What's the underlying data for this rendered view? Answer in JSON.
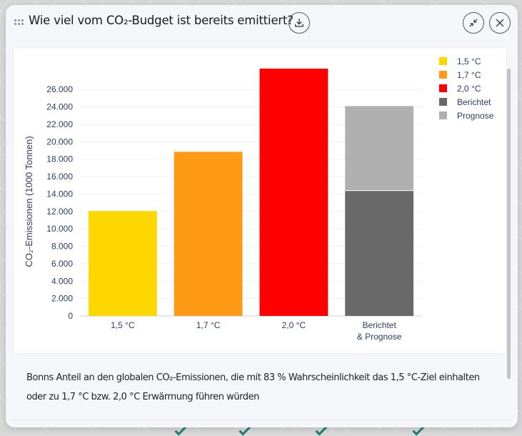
{
  "modal": {
    "title": "Wie viel vom CO₂-Budget ist bereits emittiert?",
    "caption": "Bonns Anteil an den globalen CO₂-Emissionen, die mit 83 % Wahrscheinlichkeit das 1,5 °C-Ziel einhalten oder zu 1,7 °C bzw. 2,0 °C Erwärmung führen würden",
    "buttons": {
      "download": "download-icon",
      "minimize": "minimize-icon",
      "close": "close-icon"
    }
  },
  "chart_data": {
    "type": "bar",
    "title": "",
    "xlabel": "",
    "ylabel": "CO₂-Emissionen (1000 Tonnen)",
    "ylim": [
      0,
      28400
    ],
    "yticks": [
      0,
      2000,
      4000,
      6000,
      8000,
      10000,
      12000,
      14000,
      16000,
      18000,
      20000,
      22000,
      24000,
      26000
    ],
    "ytick_labels": [
      "0",
      "2.000",
      "4.000",
      "6.000",
      "8.000",
      "10.000",
      "12.000",
      "14.000",
      "16.000",
      "18.000",
      "20.000",
      "22.000",
      "24.000",
      "26.000"
    ],
    "grid": true,
    "legend_position": "top-right",
    "categories": [
      {
        "label": [
          "1,5 °C"
        ]
      },
      {
        "label": [
          "1,7 °C"
        ]
      },
      {
        "label": [
          "2,0 °C"
        ]
      },
      {
        "label": [
          "Berichtet",
          "& Prognose"
        ]
      }
    ],
    "series": [
      {
        "name": "1,5 °C",
        "color": "#ffd700",
        "values": [
          12050,
          null,
          null,
          null
        ]
      },
      {
        "name": "1,7 °C",
        "color": "#ff9a14",
        "values": [
          null,
          18850,
          null,
          null
        ]
      },
      {
        "name": "2,0 °C",
        "color": "#ff0000",
        "values": [
          null,
          null,
          28400,
          null
        ]
      },
      {
        "name": "Berichtet",
        "color": "#696969",
        "values": [
          null,
          null,
          null,
          14350
        ]
      },
      {
        "name": "Prognose",
        "color": "#b0b0b0",
        "values": [
          null,
          null,
          null,
          9750
        ]
      }
    ],
    "stacked": true
  }
}
